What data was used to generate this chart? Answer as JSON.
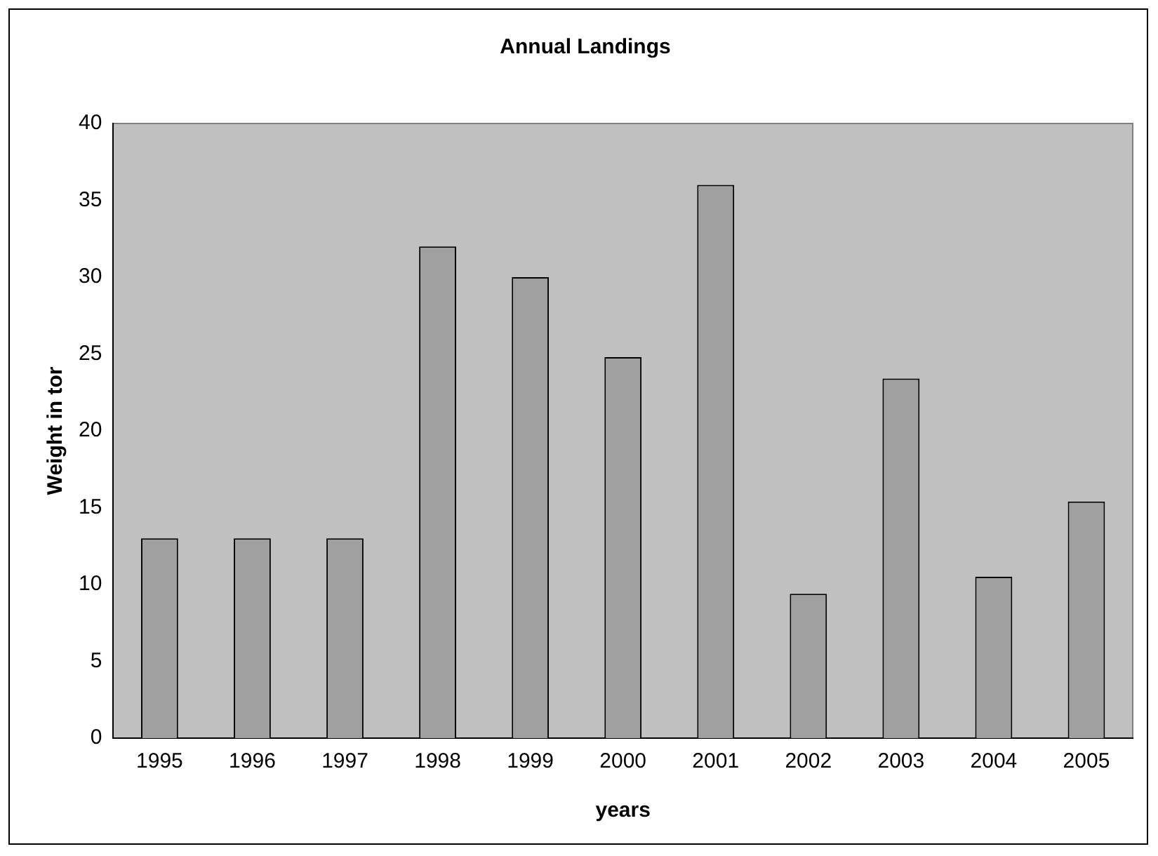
{
  "chart_data": {
    "type": "bar",
    "title": "Annual Landings",
    "xlabel": "years",
    "ylabel": "Weight in tor",
    "categories": [
      "1995",
      "1996",
      "1997",
      "1998",
      "1999",
      "2000",
      "2001",
      "2002",
      "2003",
      "2004",
      "2005"
    ],
    "values": [
      13,
      13,
      13,
      32,
      30,
      24.8,
      36,
      9.4,
      23.4,
      10.5,
      15.4
    ],
    "color": "#a0a0a0",
    "ylim": [
      0,
      40
    ],
    "yticks": [
      0,
      5,
      10,
      15,
      20,
      25,
      30,
      35,
      40
    ],
    "grid": false,
    "legend": false
  }
}
